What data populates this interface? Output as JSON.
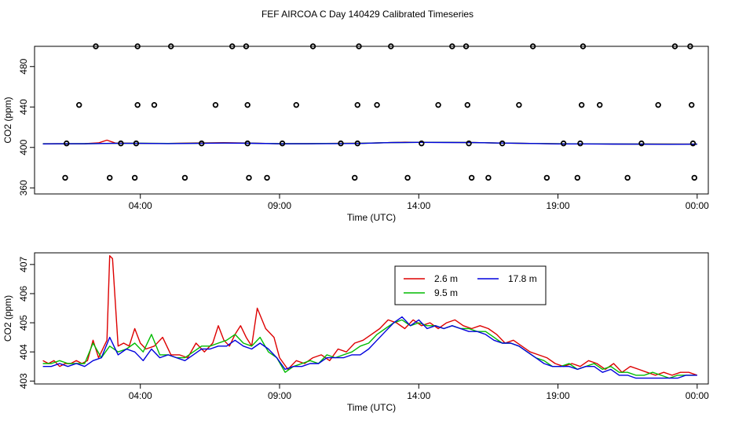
{
  "title": "FEF AIRCOA C  Day 140429  Calibrated Timeseries",
  "colors": {
    "s1": "#dd0000",
    "s2": "#00bb00",
    "s3": "#0000dd",
    "axis": "#000000"
  },
  "chart_data": [
    {
      "type": "scatter+line",
      "xlabel": "Time (UTC)",
      "ylabel": "CO2 (ppm)",
      "xlim": [
        0.2,
        24.4
      ],
      "ylim": [
        354,
        500
      ],
      "x_ticks": [
        {
          "value": 4,
          "label": "04:00"
        },
        {
          "value": 9,
          "label": "09:00"
        },
        {
          "value": 14,
          "label": "14:00"
        },
        {
          "value": 19,
          "label": "19:00"
        },
        {
          "value": 24,
          "label": "00:00"
        }
      ],
      "y_ticks": [
        360,
        400,
        440,
        480
      ],
      "markers": [
        {
          "x": 1.3,
          "y": 370
        },
        {
          "x": 1.8,
          "y": 442
        },
        {
          "x": 1.35,
          "y": 404
        },
        {
          "x": 2.4,
          "y": 500
        },
        {
          "x": 2.9,
          "y": 370
        },
        {
          "x": 3.3,
          "y": 404
        },
        {
          "x": 3.8,
          "y": 370
        },
        {
          "x": 3.9,
          "y": 442
        },
        {
          "x": 3.85,
          "y": 404
        },
        {
          "x": 3.9,
          "y": 500
        },
        {
          "x": 4.5,
          "y": 442
        },
        {
          "x": 5.1,
          "y": 500
        },
        {
          "x": 5.6,
          "y": 370
        },
        {
          "x": 6.2,
          "y": 404
        },
        {
          "x": 6.7,
          "y": 442
        },
        {
          "x": 7.3,
          "y": 500
        },
        {
          "x": 7.8,
          "y": 500
        },
        {
          "x": 7.85,
          "y": 442
        },
        {
          "x": 7.9,
          "y": 370
        },
        {
          "x": 7.85,
          "y": 404
        },
        {
          "x": 8.55,
          "y": 370
        },
        {
          "x": 9.1,
          "y": 404
        },
        {
          "x": 9.6,
          "y": 442
        },
        {
          "x": 10.2,
          "y": 500
        },
        {
          "x": 11.2,
          "y": 404
        },
        {
          "x": 11.7,
          "y": 370
        },
        {
          "x": 11.8,
          "y": 404
        },
        {
          "x": 11.8,
          "y": 442
        },
        {
          "x": 11.85,
          "y": 500
        },
        {
          "x": 12.5,
          "y": 442
        },
        {
          "x": 13.0,
          "y": 500
        },
        {
          "x": 13.6,
          "y": 370
        },
        {
          "x": 14.1,
          "y": 404
        },
        {
          "x": 14.7,
          "y": 442
        },
        {
          "x": 15.2,
          "y": 500
        },
        {
          "x": 15.7,
          "y": 500
        },
        {
          "x": 15.75,
          "y": 442
        },
        {
          "x": 15.8,
          "y": 404
        },
        {
          "x": 15.9,
          "y": 370
        },
        {
          "x": 16.5,
          "y": 370
        },
        {
          "x": 17.0,
          "y": 404
        },
        {
          "x": 17.6,
          "y": 442
        },
        {
          "x": 18.1,
          "y": 500
        },
        {
          "x": 18.6,
          "y": 370
        },
        {
          "x": 19.2,
          "y": 404
        },
        {
          "x": 19.7,
          "y": 370
        },
        {
          "x": 19.8,
          "y": 404
        },
        {
          "x": 19.85,
          "y": 442
        },
        {
          "x": 19.9,
          "y": 500
        },
        {
          "x": 20.5,
          "y": 442
        },
        {
          "x": 21.5,
          "y": 370
        },
        {
          "x": 22.0,
          "y": 404
        },
        {
          "x": 22.6,
          "y": 442
        },
        {
          "x": 23.2,
          "y": 500
        },
        {
          "x": 23.75,
          "y": 500
        },
        {
          "x": 23.8,
          "y": 442
        },
        {
          "x": 23.85,
          "y": 404
        },
        {
          "x": 23.9,
          "y": 370
        }
      ],
      "series": [
        {
          "color": "#dd0000",
          "x": [
            0.5,
            1,
            2,
            2.5,
            2.8,
            3.1,
            4,
            5,
            6,
            7,
            7.9,
            8.5,
            9,
            10,
            11,
            12,
            13,
            13.5,
            14,
            15,
            16,
            17,
            18,
            19,
            20,
            21,
            22,
            23,
            24
          ],
          "y": [
            403.6,
            403.6,
            403.7,
            404.5,
            407.2,
            404.3,
            404.0,
            403.9,
            404.4,
            404.7,
            404.3,
            403.9,
            403.6,
            403.8,
            404.0,
            404.2,
            404.8,
            405.2,
            405.0,
            405.0,
            404.8,
            404.3,
            403.9,
            403.6,
            403.5,
            403.4,
            403.3,
            403.3,
            403.2
          ]
        },
        {
          "color": "#00bb00",
          "x": [
            0.5,
            1,
            2,
            3,
            4,
            5,
            6,
            7,
            8,
            9,
            10,
            11,
            12,
            13,
            14,
            15,
            16,
            17,
            18,
            19,
            20,
            21,
            22,
            23,
            24
          ],
          "y": [
            403.6,
            403.6,
            403.7,
            404.0,
            404.1,
            403.9,
            404.1,
            404.4,
            404.2,
            403.7,
            403.7,
            403.9,
            404.1,
            404.8,
            405.0,
            405.0,
            404.8,
            404.3,
            403.9,
            403.6,
            403.5,
            403.4,
            403.3,
            403.2,
            403.2
          ]
        },
        {
          "color": "#0000dd",
          "x": [
            0.5,
            1,
            2,
            3,
            4,
            5,
            6,
            7,
            8,
            9,
            10,
            11,
            12,
            13,
            14,
            15,
            16,
            17,
            18,
            19,
            20,
            21,
            22,
            23,
            24
          ],
          "y": [
            403.5,
            403.6,
            403.6,
            404.0,
            404.0,
            403.8,
            404.0,
            404.3,
            404.1,
            403.6,
            403.6,
            403.8,
            404.0,
            404.8,
            405.0,
            404.9,
            404.8,
            404.3,
            403.9,
            403.5,
            403.5,
            403.3,
            403.2,
            403.1,
            403.2
          ]
        }
      ]
    },
    {
      "type": "line",
      "xlabel": "Time (UTC)",
      "ylabel": "CO2 (ppm)",
      "xlim": [
        0.2,
        24.4
      ],
      "ylim": [
        402.9,
        407.4
      ],
      "x_ticks": [
        {
          "value": 4,
          "label": "04:00"
        },
        {
          "value": 9,
          "label": "09:00"
        },
        {
          "value": 14,
          "label": "14:00"
        },
        {
          "value": 19,
          "label": "19:00"
        },
        {
          "value": 24,
          "label": "00:00"
        }
      ],
      "y_ticks": [
        403,
        404,
        405,
        406,
        407
      ],
      "legend": {
        "position": "top-center",
        "entries": [
          "2.6 m",
          "17.8 m",
          "9.5 m"
        ]
      },
      "series": [
        {
          "name": "2.6 m",
          "color": "#dd0000",
          "x": [
            0.5,
            0.7,
            0.9,
            1.1,
            1.3,
            1.5,
            1.7,
            1.9,
            2.1,
            2.3,
            2.5,
            2.6,
            2.8,
            2.9,
            3.0,
            3.2,
            3.4,
            3.6,
            3.8,
            4.0,
            4.2,
            4.5,
            4.8,
            5.1,
            5.4,
            5.7,
            6.0,
            6.3,
            6.6,
            6.8,
            7.0,
            7.2,
            7.4,
            7.6,
            7.8,
            8.0,
            8.2,
            8.5,
            8.8,
            9.0,
            9.3,
            9.6,
            9.9,
            10.2,
            10.5,
            10.8,
            11.1,
            11.4,
            11.7,
            12.0,
            12.3,
            12.6,
            12.9,
            13.2,
            13.5,
            13.8,
            14.1,
            14.4,
            14.7,
            15.0,
            15.3,
            15.6,
            15.9,
            16.2,
            16.5,
            16.8,
            17.1,
            17.4,
            17.7,
            18.0,
            18.3,
            18.6,
            18.9,
            19.2,
            19.5,
            19.8,
            20.1,
            20.4,
            20.7,
            21.0,
            21.3,
            21.6,
            21.9,
            22.2,
            22.5,
            22.8,
            23.1,
            23.4,
            23.7,
            24.0
          ],
          "y": [
            403.7,
            403.6,
            403.7,
            403.5,
            403.6,
            403.6,
            403.7,
            403.6,
            403.7,
            404.4,
            403.8,
            404.0,
            404.4,
            407.3,
            407.2,
            404.2,
            404.3,
            404.2,
            404.8,
            404.3,
            404.1,
            404.2,
            404.5,
            403.9,
            403.9,
            403.8,
            404.3,
            404.0,
            404.3,
            404.9,
            404.4,
            404.2,
            404.6,
            404.9,
            404.5,
            404.2,
            405.5,
            404.8,
            404.5,
            403.8,
            403.4,
            403.7,
            403.6,
            403.8,
            403.9,
            403.7,
            404.1,
            404.0,
            404.3,
            404.4,
            404.6,
            404.8,
            405.1,
            405.0,
            404.8,
            405.1,
            404.9,
            405.0,
            404.8,
            405.0,
            405.1,
            404.9,
            404.8,
            404.9,
            404.8,
            404.6,
            404.3,
            404.4,
            404.2,
            404.0,
            403.9,
            403.8,
            403.6,
            403.5,
            403.6,
            403.5,
            403.7,
            403.6,
            403.4,
            403.6,
            403.3,
            403.5,
            403.4,
            403.3,
            403.2,
            403.3,
            403.2,
            403.3,
            403.3,
            403.2
          ]
        },
        {
          "name": "9.5 m",
          "color": "#00bb00",
          "x": [
            0.5,
            0.8,
            1.1,
            1.4,
            1.7,
            2.0,
            2.3,
            2.6,
            2.9,
            3.2,
            3.5,
            3.8,
            4.1,
            4.4,
            4.7,
            5.0,
            5.3,
            5.6,
            5.9,
            6.2,
            6.5,
            6.8,
            7.1,
            7.4,
            7.7,
            8.0,
            8.3,
            8.6,
            8.9,
            9.2,
            9.5,
            9.8,
            10.1,
            10.4,
            10.7,
            11.0,
            11.3,
            11.6,
            11.9,
            12.2,
            12.5,
            12.8,
            13.1,
            13.4,
            13.7,
            14.0,
            14.3,
            14.6,
            14.9,
            15.2,
            15.5,
            15.8,
            16.1,
            16.4,
            16.7,
            17.0,
            17.3,
            17.6,
            17.9,
            18.2,
            18.5,
            18.8,
            19.1,
            19.4,
            19.7,
            20.0,
            20.3,
            20.6,
            20.9,
            21.2,
            21.5,
            21.8,
            22.1,
            22.4,
            22.7,
            23.0,
            23.3,
            23.6,
            23.9
          ],
          "y": [
            403.6,
            403.6,
            403.7,
            403.6,
            403.6,
            403.6,
            404.3,
            403.8,
            404.2,
            404.0,
            404.1,
            404.3,
            404.0,
            404.6,
            403.9,
            403.9,
            403.8,
            403.8,
            404.0,
            404.2,
            404.2,
            404.3,
            404.4,
            404.6,
            404.3,
            404.2,
            404.5,
            404.0,
            403.8,
            403.3,
            403.5,
            403.6,
            403.7,
            403.6,
            403.9,
            403.8,
            403.9,
            404.0,
            404.2,
            404.3,
            404.6,
            404.8,
            405.0,
            405.1,
            404.9,
            405.0,
            404.9,
            404.9,
            404.8,
            404.9,
            404.8,
            404.8,
            404.7,
            404.7,
            404.5,
            404.3,
            404.3,
            404.2,
            404.0,
            403.8,
            403.7,
            403.5,
            403.5,
            403.6,
            403.4,
            403.5,
            403.6,
            403.4,
            403.5,
            403.3,
            403.3,
            403.2,
            403.2,
            403.3,
            403.2,
            403.1,
            403.2,
            403.2,
            403.2
          ]
        },
        {
          "name": "17.8 m",
          "color": "#0000dd",
          "x": [
            0.5,
            0.8,
            1.1,
            1.4,
            1.7,
            2.0,
            2.3,
            2.6,
            2.9,
            3.2,
            3.5,
            3.8,
            4.1,
            4.4,
            4.7,
            5.0,
            5.3,
            5.6,
            5.9,
            6.2,
            6.5,
            6.8,
            7.1,
            7.4,
            7.7,
            8.0,
            8.3,
            8.6,
            8.9,
            9.2,
            9.5,
            9.8,
            10.1,
            10.4,
            10.7,
            11.0,
            11.3,
            11.6,
            11.9,
            12.2,
            12.5,
            12.8,
            13.1,
            13.4,
            13.7,
            14.0,
            14.3,
            14.6,
            14.9,
            15.2,
            15.5,
            15.8,
            16.1,
            16.4,
            16.7,
            17.0,
            17.3,
            17.6,
            17.9,
            18.2,
            18.5,
            18.8,
            19.1,
            19.4,
            19.7,
            20.0,
            20.3,
            20.6,
            20.9,
            21.2,
            21.5,
            21.8,
            22.1,
            22.4,
            22.7,
            23.0,
            23.3,
            23.6,
            24.0
          ],
          "y": [
            403.5,
            403.5,
            403.6,
            403.5,
            403.6,
            403.5,
            403.7,
            403.8,
            404.5,
            403.9,
            404.1,
            404.0,
            403.7,
            404.1,
            403.8,
            403.9,
            403.8,
            403.7,
            403.9,
            404.1,
            404.1,
            404.2,
            404.2,
            404.4,
            404.2,
            404.1,
            404.3,
            404.1,
            403.8,
            403.4,
            403.5,
            403.5,
            403.6,
            403.6,
            403.8,
            403.8,
            403.8,
            403.9,
            403.9,
            404.1,
            404.4,
            404.7,
            405.0,
            405.2,
            404.9,
            405.1,
            404.8,
            404.9,
            404.8,
            404.9,
            404.8,
            404.7,
            404.7,
            404.6,
            404.4,
            404.3,
            404.3,
            404.2,
            404.0,
            403.8,
            403.6,
            403.5,
            403.5,
            403.5,
            403.4,
            403.5,
            403.5,
            403.3,
            403.4,
            403.2,
            403.2,
            403.1,
            403.1,
            403.1,
            403.1,
            403.1,
            403.1,
            403.2,
            403.2
          ]
        }
      ]
    }
  ]
}
